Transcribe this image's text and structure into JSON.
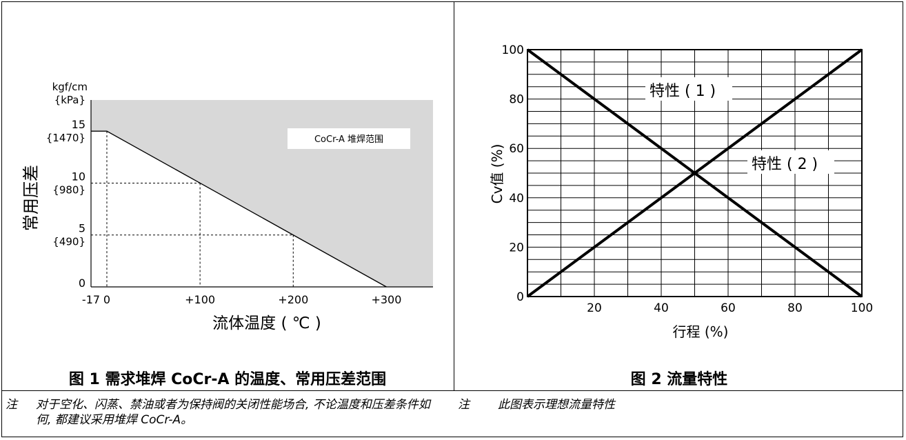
{
  "figure1": {
    "caption": "图 1 需求堆焊 CoCr-A 的温度、常用压差范围",
    "ylabel": "常用压差",
    "xlabel": "流体温度 ( ℃ )",
    "unit_top": "kgf/cm",
    "unit_bottom": "{kPa}",
    "region_label": "CoCr-A 堆焊范围",
    "y_ticks": [
      {
        "value": 15,
        "label": "15",
        "sub": "{1470}"
      },
      {
        "value": 10,
        "label": "10",
        "sub": "{980}"
      },
      {
        "value": 5,
        "label": "5",
        "sub": "{490}"
      },
      {
        "value": 0,
        "label": "0",
        "sub": ""
      }
    ],
    "x_ticks": [
      {
        "value": -17,
        "label": "-17"
      },
      {
        "value": 0,
        "label": "0"
      },
      {
        "value": 100,
        "label": "+100"
      },
      {
        "value": 200,
        "label": "+200"
      },
      {
        "value": 300,
        "label": "+300"
      }
    ]
  },
  "chart_data": [
    {
      "type": "area",
      "title": "图 1 需求堆焊 CoCr-A 的温度、常用压差范围",
      "xlabel": "流体温度 ( ℃ )",
      "ylabel": "常用压差",
      "y_unit": "kgf/cm {kPa}",
      "boundary": {
        "x": [
          -17,
          0,
          100,
          200,
          300
        ],
        "y": [
          15,
          15,
          10,
          5,
          0
        ]
      },
      "region": "CoCr-A 堆焊范围",
      "ylim": [
        0,
        18
      ],
      "xlim": [
        -17,
        350
      ]
    },
    {
      "type": "line",
      "title": "图 2 流量特性",
      "xlabel": "行程 (%)",
      "ylabel": "Cv值 (%)",
      "x": [
        0,
        100
      ],
      "series": [
        {
          "name": "特性 ( 1 )",
          "values": [
            100,
            0
          ]
        },
        {
          "name": "特性 ( 2 )",
          "values": [
            0,
            100
          ]
        }
      ],
      "xlim": [
        0,
        100
      ],
      "ylim": [
        0,
        100
      ],
      "x_ticks": [
        20,
        40,
        60,
        80,
        100
      ],
      "y_ticks": [
        0,
        20,
        40,
        60,
        80,
        100
      ],
      "grid": true
    }
  ],
  "figure2": {
    "caption": "图 2 流量特性",
    "xlabel": "行程 (%)",
    "ylabel": "Cv值 (%)",
    "series_labels": [
      "特性 ( 1 )",
      "特性 ( 2 )"
    ],
    "x_tick_labels": [
      "20",
      "40",
      "60",
      "80",
      "100"
    ],
    "y_tick_labels": [
      "0",
      "20",
      "40",
      "60",
      "80",
      "100"
    ]
  },
  "notes": {
    "left_label": "注",
    "left_text": "对于空化、闪蒸、禁油或者为保持阀的关闭性能场合, 不论温度和压差条件如何, 都建议采用堆焊 CoCr-A。",
    "right_label": "注",
    "right_text": "此图表示理想流量特性"
  },
  "colors": {
    "region_fill": "#d8d8d8",
    "line": "#000000",
    "grid": "#000000"
  }
}
